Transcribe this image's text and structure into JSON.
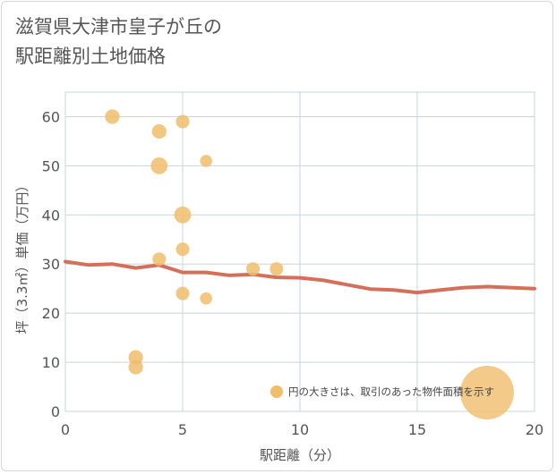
{
  "title_lines": [
    "滋賀県大津市皇子が丘の",
    "駅距離別土地価格"
  ],
  "chart_data": {
    "type": "scatter",
    "title": "滋賀県大津市皇子が丘の駅距離別土地価格",
    "xlabel": "駅距離（分）",
    "ylabel": "坪（3.3㎡）単価（万円）",
    "xlim": [
      0,
      20
    ],
    "ylim": [
      0,
      65
    ],
    "x_ticks": [
      0,
      5,
      10,
      15,
      20
    ],
    "y_ticks": [
      0,
      10,
      20,
      30,
      40,
      50,
      60
    ],
    "grid": true,
    "colors": {
      "points": "#f0bd6c",
      "line": "#d4705a",
      "grid": "#c9d3df",
      "legend_bubble": "#f0bd6c"
    },
    "points": [
      {
        "x": 2,
        "y": 60,
        "size": 2
      },
      {
        "x": 4,
        "y": 57,
        "size": 2
      },
      {
        "x": 5,
        "y": 59,
        "size": 1.5
      },
      {
        "x": 4,
        "y": 50,
        "size": 3
      },
      {
        "x": 6,
        "y": 51,
        "size": 1
      },
      {
        "x": 5,
        "y": 40,
        "size": 3
      },
      {
        "x": 5,
        "y": 33,
        "size": 1.5
      },
      {
        "x": 4,
        "y": 31,
        "size": 1.5
      },
      {
        "x": 8,
        "y": 29,
        "size": 1.5
      },
      {
        "x": 9,
        "y": 29,
        "size": 1.5
      },
      {
        "x": 5,
        "y": 24,
        "size": 1.5
      },
      {
        "x": 6,
        "y": 23,
        "size": 1
      },
      {
        "x": 3,
        "y": 11,
        "size": 2
      },
      {
        "x": 3,
        "y": 9,
        "size": 2
      }
    ],
    "trend_line": {
      "x": [
        0,
        1,
        2,
        3,
        4,
        5,
        6,
        7,
        8,
        9,
        10,
        11,
        12,
        13,
        14,
        15,
        16,
        17,
        18,
        19,
        20
      ],
      "y": [
        30.5,
        29.8,
        30.0,
        29.2,
        29.8,
        28.3,
        28.3,
        27.7,
        27.9,
        27.3,
        27.2,
        26.7,
        25.8,
        24.9,
        24.7,
        24.2,
        24.7,
        25.2,
        25.4,
        25.2,
        25.0
      ]
    },
    "legend": {
      "text": "円の大きさは、取引のあった物件面積を示す",
      "placement": "bottom-right"
    }
  }
}
